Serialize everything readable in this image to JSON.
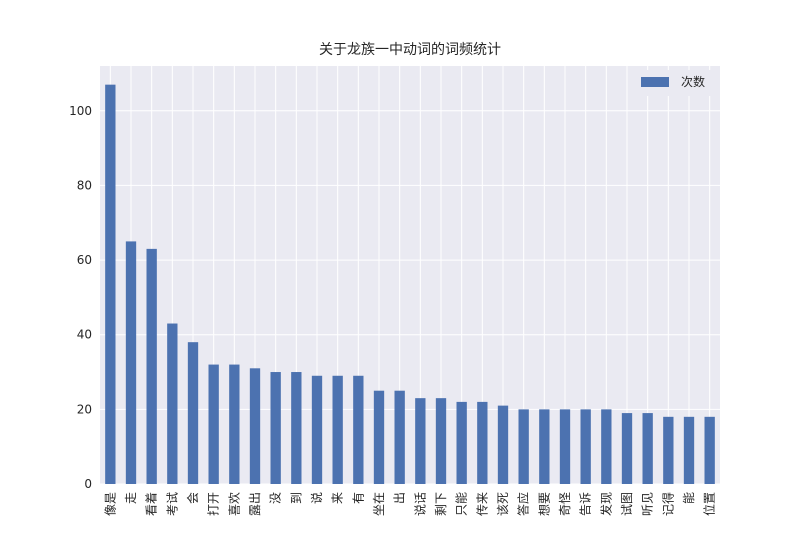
{
  "chart_data": {
    "type": "bar",
    "title": "关于龙族一中动词的词频统计",
    "xlabel": "",
    "ylabel": "",
    "ylim": [
      0,
      112
    ],
    "yticks": [
      0,
      20,
      40,
      60,
      80,
      100
    ],
    "grid": true,
    "legend_position": "top-right",
    "colors": {
      "bar": "#4C72B0",
      "plot_bg": "#EAEAF2",
      "grid": "#FFFFFF"
    },
    "categories": [
      "像是",
      "走",
      "看着",
      "考试",
      "会",
      "打开",
      "喜欢",
      "露出",
      "没",
      "到",
      "说",
      "来",
      "有",
      "坐在",
      "出",
      "说话",
      "剩下",
      "只能",
      "传来",
      "该死",
      "答应",
      "想要",
      "奇怪",
      "告诉",
      "发现",
      "试图",
      "听见",
      "记得",
      "能",
      "位置"
    ],
    "series": [
      {
        "name": "次数",
        "values": [
          107,
          65,
          63,
          43,
          38,
          32,
          32,
          31,
          30,
          30,
          29,
          29,
          29,
          25,
          25,
          23,
          23,
          22,
          22,
          21,
          20,
          20,
          20,
          20,
          20,
          19,
          19,
          18,
          18,
          18
        ]
      }
    ]
  }
}
